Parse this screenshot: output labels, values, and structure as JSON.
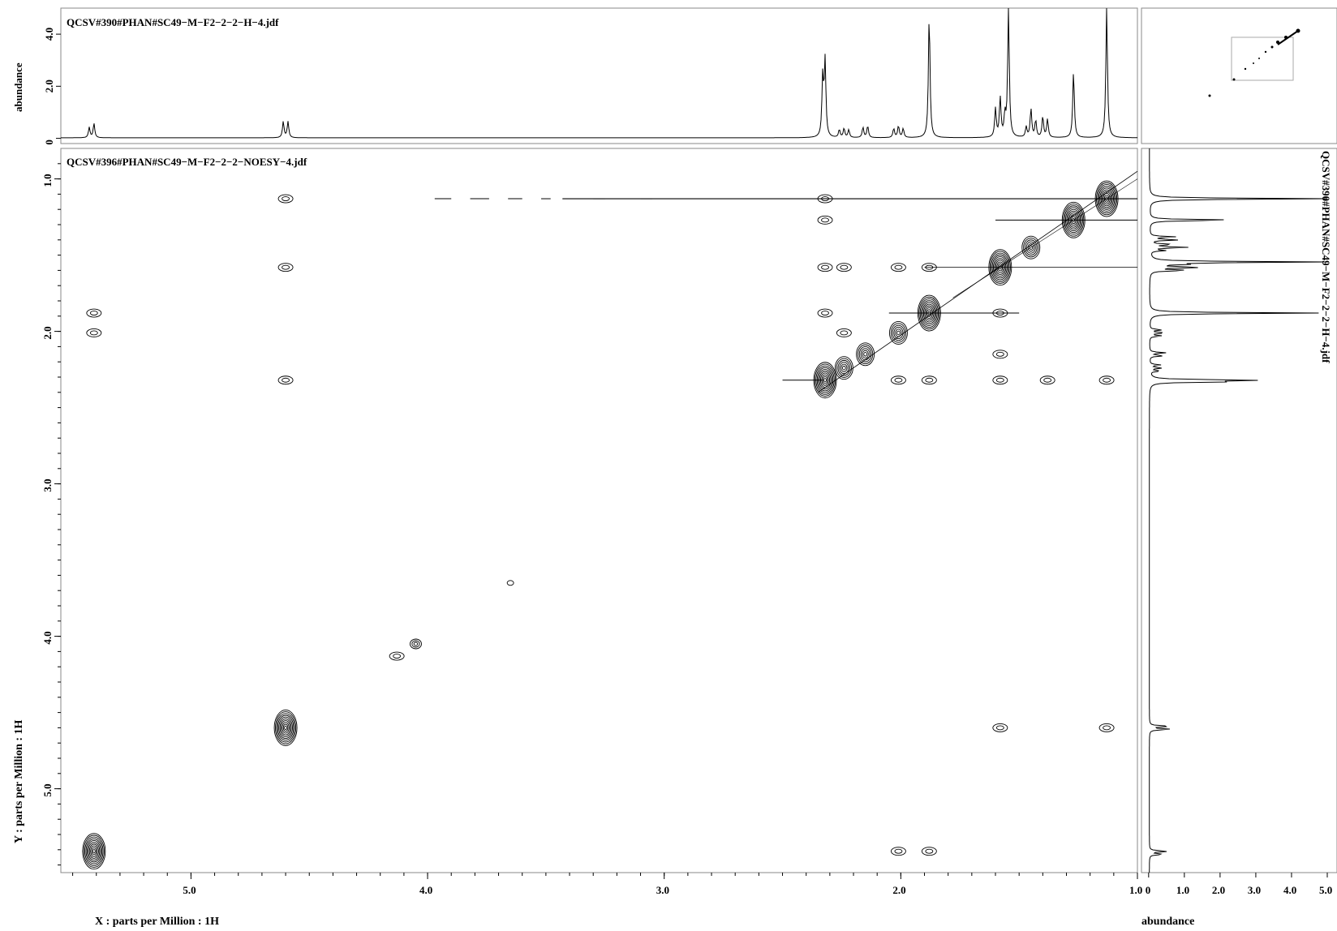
{
  "chart_data": {
    "type": "contour",
    "top_projection": {
      "filename": "QCSV#390#PHAN#SC49−M−F2−2−2−H−4.jdf",
      "ylabel": "abundance",
      "yticks": [
        "0",
        "2.0",
        "4.0"
      ],
      "ylim": [
        -0.2,
        5.0
      ],
      "peaks": [
        {
          "ppm": 5.41,
          "h": 0.55
        },
        {
          "ppm": 5.43,
          "h": 0.4
        },
        {
          "ppm": 4.61,
          "h": 0.62
        },
        {
          "ppm": 4.59,
          "h": 0.62
        },
        {
          "ppm": 2.33,
          "h": 2.3
        },
        {
          "ppm": 2.32,
          "h": 2.9
        },
        {
          "ppm": 2.26,
          "h": 0.3
        },
        {
          "ppm": 2.24,
          "h": 0.35
        },
        {
          "ppm": 2.22,
          "h": 0.3
        },
        {
          "ppm": 2.16,
          "h": 0.4
        },
        {
          "ppm": 2.14,
          "h": 0.45
        },
        {
          "ppm": 2.03,
          "h": 0.35
        },
        {
          "ppm": 2.01,
          "h": 0.45
        },
        {
          "ppm": 1.99,
          "h": 0.35
        },
        {
          "ppm": 1.88,
          "h": 4.75
        },
        {
          "ppm": 1.6,
          "h": 1.1
        },
        {
          "ppm": 1.58,
          "h": 1.5
        },
        {
          "ppm": 1.56,
          "h": 0.8
        },
        {
          "ppm": 1.545,
          "h": 5.0
        },
        {
          "ppm": 1.47,
          "h": 0.4
        },
        {
          "ppm": 1.45,
          "h": 1.1
        },
        {
          "ppm": 1.43,
          "h": 0.65
        },
        {
          "ppm": 1.4,
          "h": 0.8
        },
        {
          "ppm": 1.38,
          "h": 0.7
        },
        {
          "ppm": 1.27,
          "h": 2.55
        },
        {
          "ppm": 1.13,
          "h": 5.0
        }
      ]
    },
    "main": {
      "filename": "QCSV#396#PHAN#SC49−M−F2−2−2−NOESY−4.jdf",
      "xlabel": "X : parts per Million : 1H",
      "ylabel": "Y : parts per Million : 1H",
      "x_range": [
        5.55,
        1.0
      ],
      "y_range": [
        0.8,
        5.55
      ],
      "xticks": [
        "5.0",
        "4.0",
        "3.0",
        "2.0",
        "1.0"
      ],
      "yticks": [
        "1.0",
        "2.0",
        "3.0",
        "4.0",
        "5.0"
      ],
      "diagonal_peaks": [
        {
          "x": 5.41,
          "y": 5.41,
          "size": 3
        },
        {
          "x": 4.6,
          "y": 4.6,
          "size": 3
        },
        {
          "x": 4.05,
          "y": 4.05,
          "size": 1
        },
        {
          "x": 3.65,
          "y": 3.65,
          "size": 0
        },
        {
          "x": 2.32,
          "y": 2.32,
          "size": 3
        },
        {
          "x": 2.24,
          "y": 2.24,
          "size": 2
        },
        {
          "x": 2.15,
          "y": 2.15,
          "size": 2
        },
        {
          "x": 2.01,
          "y": 2.01,
          "size": 2
        },
        {
          "x": 1.88,
          "y": 1.88,
          "size": 3
        },
        {
          "x": 1.58,
          "y": 1.58,
          "size": 3
        },
        {
          "x": 1.45,
          "y": 1.45,
          "size": 2
        },
        {
          "x": 1.27,
          "y": 1.27,
          "size": 3
        },
        {
          "x": 1.13,
          "y": 1.13,
          "size": 3
        }
      ],
      "cross_peaks": [
        {
          "x": 4.6,
          "y": 1.13
        },
        {
          "x": 4.6,
          "y": 1.58
        },
        {
          "x": 4.6,
          "y": 2.32
        },
        {
          "x": 5.41,
          "y": 1.88
        },
        {
          "x": 5.41,
          "y": 2.01
        },
        {
          "x": 2.32,
          "y": 1.13
        },
        {
          "x": 2.32,
          "y": 1.27
        },
        {
          "x": 2.32,
          "y": 1.88
        },
        {
          "x": 2.32,
          "y": 1.58
        },
        {
          "x": 2.24,
          "y": 1.58
        },
        {
          "x": 2.01,
          "y": 1.58
        },
        {
          "x": 2.24,
          "y": 2.01
        },
        {
          "x": 2.01,
          "y": 2.32
        },
        {
          "x": 1.88,
          "y": 2.32
        },
        {
          "x": 1.58,
          "y": 2.15
        },
        {
          "x": 1.58,
          "y": 2.32
        },
        {
          "x": 1.38,
          "y": 2.32
        },
        {
          "x": 1.13,
          "y": 2.32
        },
        {
          "x": 1.13,
          "y": 4.6
        },
        {
          "x": 1.58,
          "y": 4.6
        },
        {
          "x": 2.01,
          "y": 5.41
        },
        {
          "x": 1.88,
          "y": 5.41
        },
        {
          "x": 4.13,
          "y": 4.13
        },
        {
          "x": 1.58,
          "y": 1.88
        },
        {
          "x": 1.88,
          "y": 1.58
        }
      ]
    },
    "right_projection": {
      "filename": "QCSV#390#PHAN#SC49−M−F2−2−2−H−4.jdf",
      "xlabel": "abundance",
      "xticks": [
        "0",
        "1.0",
        "2.0",
        "3.0",
        "4.0",
        "5.0"
      ],
      "xlim": [
        -0.2,
        5.0
      ]
    },
    "overview": {
      "description_hidden": true
    }
  }
}
